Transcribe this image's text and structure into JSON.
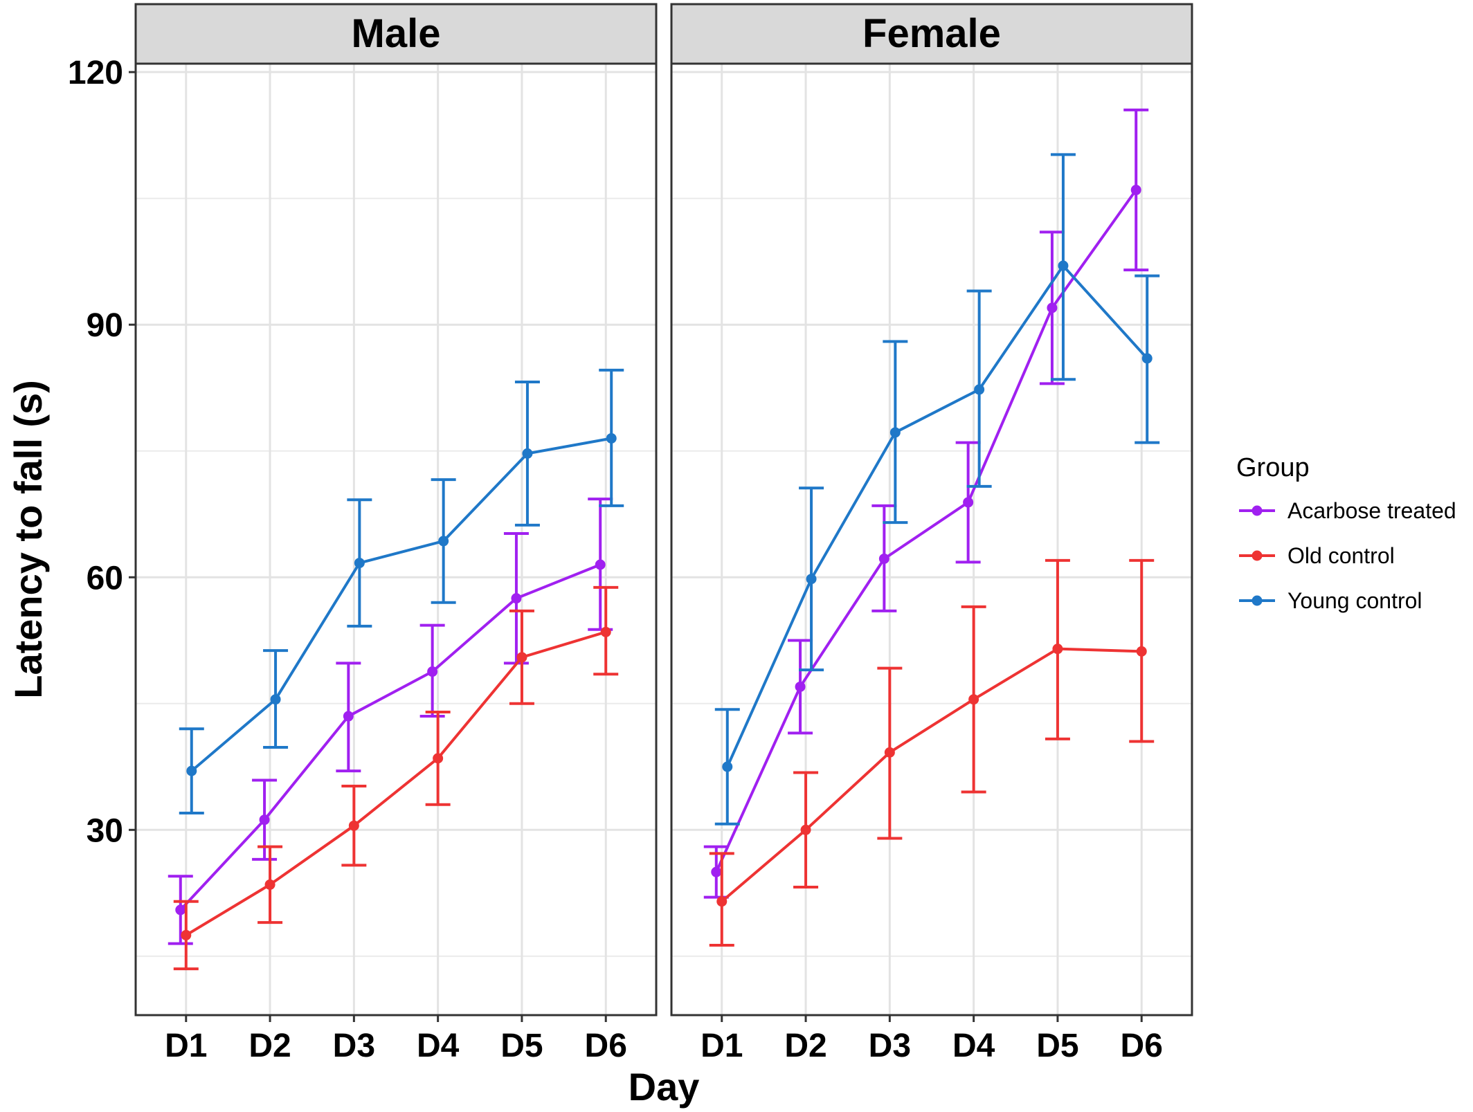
{
  "chart_data": {
    "type": "line",
    "xlabel": "Day",
    "ylabel": "Latency to fall (s)",
    "categories": [
      "D1",
      "D2",
      "D3",
      "D4",
      "D5",
      "D6"
    ],
    "ylim": [
      8,
      121
    ],
    "yticks": [
      30,
      60,
      90,
      120
    ],
    "grid": true,
    "error_bars": true,
    "legend": {
      "title": "Group",
      "position": "right",
      "entries": [
        "Acarbose  treated",
        "Old control",
        "Young control"
      ]
    },
    "colors": {
      "Acarbose  treated": "#A020F0",
      "Old control": "#EE3333",
      "Young control": "#1F78C8"
    },
    "panels": [
      {
        "title": "Male",
        "series": [
          {
            "name": "Acarbose  treated",
            "values": [
              20.5,
              31.2,
              43.5,
              48.8,
              57.5,
              61.5
            ],
            "lower": [
              16.5,
              26.5,
              37.0,
              43.5,
              49.8,
              53.8
            ],
            "upper": [
              24.5,
              35.9,
              49.8,
              54.3,
              65.2,
              69.3
            ]
          },
          {
            "name": "Old control",
            "values": [
              17.5,
              23.5,
              30.5,
              38.5,
              50.5,
              53.5
            ],
            "lower": [
              13.5,
              19.0,
              25.8,
              33.0,
              45.0,
              48.5
            ],
            "upper": [
              21.5,
              28.0,
              35.2,
              44.0,
              56.0,
              58.8
            ]
          },
          {
            "name": "Young control",
            "values": [
              37.0,
              45.5,
              61.7,
              64.3,
              74.7,
              76.5
            ],
            "lower": [
              32.0,
              39.8,
              54.2,
              57.0,
              66.2,
              68.5
            ],
            "upper": [
              42.0,
              51.3,
              69.2,
              71.6,
              83.2,
              84.6
            ]
          }
        ]
      },
      {
        "title": "Female",
        "series": [
          {
            "name": "Acarbose  treated",
            "values": [
              25.0,
              47.0,
              62.2,
              68.9,
              92.0,
              106.0
            ],
            "lower": [
              22.0,
              41.5,
              56.0,
              61.8,
              83.0,
              96.5
            ],
            "upper": [
              28.0,
              52.5,
              68.5,
              76.0,
              101.0,
              115.5
            ]
          },
          {
            "name": "Old control",
            "values": [
              21.5,
              30.0,
              39.2,
              45.5,
              51.5,
              51.2
            ],
            "lower": [
              16.3,
              23.2,
              29.0,
              34.5,
              40.8,
              40.5
            ],
            "upper": [
              27.2,
              36.8,
              49.2,
              56.5,
              62.0,
              62.0
            ]
          },
          {
            "name": "Young control",
            "values": [
              37.5,
              59.8,
              77.2,
              82.3,
              97.0,
              86.0
            ],
            "lower": [
              30.7,
              49.0,
              66.5,
              70.8,
              83.5,
              76.0
            ],
            "upper": [
              44.3,
              70.6,
              88.0,
              94.0,
              110.2,
              95.8
            ]
          }
        ]
      }
    ]
  }
}
